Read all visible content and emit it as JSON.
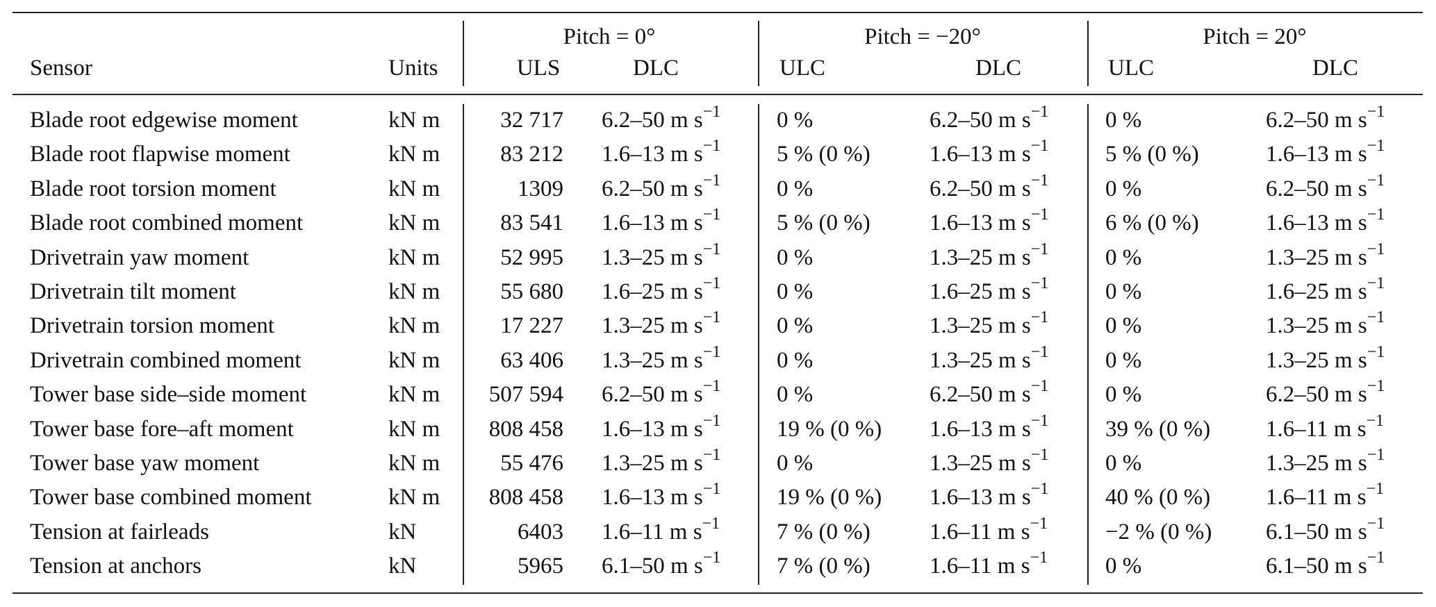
{
  "table": {
    "group_headers": [
      "Pitch = 0°",
      "Pitch = −20°",
      "Pitch = 20°"
    ],
    "headers": [
      "Sensor",
      "Units",
      "ULS",
      "DLC",
      "ULC",
      "DLC",
      "ULC",
      "DLC"
    ],
    "rows": [
      [
        "Blade root edgewise moment",
        "kN m",
        "32 717",
        {
          "text": "6.2–50 m s",
          "sup": "−1"
        },
        "0 %",
        {
          "text": "6.2–50 m s",
          "sup": "−1"
        },
        "0 %",
        {
          "text": "6.2–50 m s",
          "sup": "−1"
        }
      ],
      [
        "Blade root flapwise moment",
        "kN m",
        "83 212",
        {
          "text": "1.6–13 m s",
          "sup": "−1"
        },
        "5 % (0 %)",
        {
          "text": "1.6–13 m s",
          "sup": "−1"
        },
        "5 % (0 %)",
        {
          "text": "1.6–13 m s",
          "sup": "−1"
        }
      ],
      [
        "Blade root torsion moment",
        "kN m",
        "1309",
        {
          "text": "6.2–50 m s",
          "sup": "−1"
        },
        "0 %",
        {
          "text": "6.2–50 m s",
          "sup": "−1"
        },
        "0 %",
        {
          "text": "6.2–50 m s",
          "sup": "−1"
        }
      ],
      [
        "Blade root combined moment",
        "kN m",
        "83 541",
        {
          "text": "1.6–13 m s",
          "sup": "−1"
        },
        "5 % (0 %)",
        {
          "text": "1.6–13 m s",
          "sup": "−1"
        },
        "6 % (0 %)",
        {
          "text": "1.6–13 m s",
          "sup": "−1"
        }
      ],
      [
        "Drivetrain yaw moment",
        "kN m",
        "52 995",
        {
          "text": "1.3–25 m s",
          "sup": "−1"
        },
        "0 %",
        {
          "text": "1.3–25 m s",
          "sup": "−1"
        },
        "0 %",
        {
          "text": "1.3–25 m s",
          "sup": "−1"
        }
      ],
      [
        "Drivetrain tilt moment",
        "kN m",
        "55 680",
        {
          "text": "1.6–25 m s",
          "sup": "−1"
        },
        "0 %",
        {
          "text": "1.6–25 m s",
          "sup": "−1"
        },
        "0 %",
        {
          "text": "1.6–25 m s",
          "sup": "−1"
        }
      ],
      [
        "Drivetrain torsion moment",
        "kN m",
        "17 227",
        {
          "text": "1.3–25 m s",
          "sup": "−1"
        },
        "0 %",
        {
          "text": "1.3–25 m s",
          "sup": "−1"
        },
        "0 %",
        {
          "text": "1.3–25 m s",
          "sup": "−1"
        }
      ],
      [
        "Drivetrain combined moment",
        "kN m",
        "63 406",
        {
          "text": "1.3–25 m s",
          "sup": "−1"
        },
        "0 %",
        {
          "text": "1.3–25 m s",
          "sup": "−1"
        },
        "0 %",
        {
          "text": "1.3–25 m s",
          "sup": "−1"
        }
      ],
      [
        "Tower base side–side moment",
        "kN m",
        "507 594",
        {
          "text": "6.2–50 m s",
          "sup": "−1"
        },
        "0 %",
        {
          "text": "6.2–50 m s",
          "sup": "−1"
        },
        "0 %",
        {
          "text": "6.2–50 m s",
          "sup": "−1"
        }
      ],
      [
        "Tower base fore–aft moment",
        "kN m",
        "808 458",
        {
          "text": "1.6–13 m s",
          "sup": "−1"
        },
        "19 % (0 %)",
        {
          "text": "1.6–13 m s",
          "sup": "−1"
        },
        "39 % (0 %)",
        {
          "text": "1.6–11 m s",
          "sup": "−1"
        }
      ],
      [
        "Tower base yaw moment",
        "kN m",
        "55 476",
        {
          "text": "1.3–25 m s",
          "sup": "−1"
        },
        "0 %",
        {
          "text": "1.3–25 m s",
          "sup": "−1"
        },
        "0 %",
        {
          "text": "1.3–25 m s",
          "sup": "−1"
        }
      ],
      [
        "Tower base combined moment",
        "kN m",
        "808 458",
        {
          "text": "1.6–13 m s",
          "sup": "−1"
        },
        "19 % (0 %)",
        {
          "text": "1.6–13 m s",
          "sup": "−1"
        },
        "40 % (0 %)",
        {
          "text": "1.6–11 m s",
          "sup": "−1"
        }
      ],
      [
        "Tension at fairleads",
        "kN",
        "6403",
        {
          "text": "1.6–11 m s",
          "sup": "−1"
        },
        "7 % (0 %)",
        {
          "text": "1.6–11 m s",
          "sup": "−1"
        },
        "−2 % (0 %)",
        {
          "text": "6.1–50 m s",
          "sup": "−1"
        }
      ],
      [
        "Tension at anchors",
        "kN",
        "5965",
        {
          "text": "6.1–50 m s",
          "sup": "−1"
        },
        "7 % (0 %)",
        {
          "text": "1.6–11 m s",
          "sup": "−1"
        },
        "0 %",
        {
          "text": "6.1–50 m s",
          "sup": "−1"
        }
      ]
    ]
  }
}
